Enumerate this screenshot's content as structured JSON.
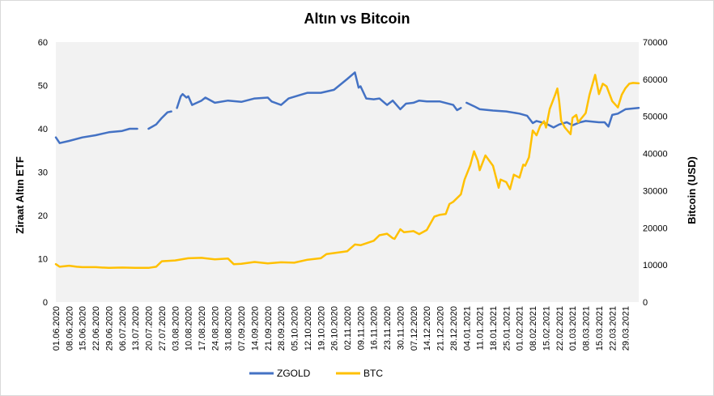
{
  "chart_data": {
    "type": "line",
    "title": "Altın vs Bitcoin",
    "ylabel_left": "Ziraat Altın ETF",
    "ylabel_right": "Bitcoin (USD)",
    "ylim_left": [
      0,
      60
    ],
    "ylim_right": [
      0,
      70000
    ],
    "yticks_left": [
      "0",
      "10",
      "20",
      "30",
      "40",
      "50",
      "60"
    ],
    "yticks_right": [
      "0",
      "10000",
      "20000",
      "30000",
      "40000",
      "50000",
      "60000",
      "70000"
    ],
    "grid": false,
    "plot_background": "#f2f2f2",
    "legend_position": "bottom",
    "x_range": [
      "01.06.2020",
      "05.04.2021"
    ],
    "x_ticks": [
      "01.06.2020",
      "08.06.2020",
      "15.06.2020",
      "22.06.2020",
      "29.06.2020",
      "06.07.2020",
      "13.07.2020",
      "20.07.2020",
      "27.07.2020",
      "03.08.2020",
      "10.08.2020",
      "17.08.2020",
      "24.08.2020",
      "31.08.2020",
      "07.09.2020",
      "14.09.2020",
      "21.09.2020",
      "28.09.2020",
      "05.10.2020",
      "12.10.2020",
      "19.10.2020",
      "26.10.2020",
      "02.11.2020",
      "09.11.2020",
      "16.11.2020",
      "23.11.2020",
      "30.11.2020",
      "07.12.2020",
      "14.12.2020",
      "21.12.2020",
      "28.12.2020",
      "04.01.2021",
      "11.01.2021",
      "18.01.2021",
      "25.01.2021",
      "01.02.2021",
      "08.02.2021",
      "15.02.2021",
      "22.02.2021",
      "01.03.2021",
      "08.03.2021",
      "15.03.2021",
      "22.03.2021",
      "29.03.2021"
    ],
    "series": [
      {
        "name": "ZGOLD",
        "axis": "left",
        "color": "#4472c4",
        "points": [
          [
            "01.06.2020",
            38
          ],
          [
            "03.06.2020",
            36.7
          ],
          [
            "08.06.2020",
            37.2
          ],
          [
            "15.06.2020",
            38
          ],
          [
            "22.06.2020",
            38.5
          ],
          [
            "29.06.2020",
            39.2
          ],
          [
            "06.07.2020",
            39.5
          ],
          [
            "10.07.2020",
            40
          ],
          [
            "14.07.2020",
            40
          ],
          [
            "17.07.2020",
            null
          ],
          [
            "20.07.2020",
            40
          ],
          [
            "24.07.2020",
            41
          ],
          [
            "27.07.2020",
            42.5
          ],
          [
            "30.07.2020",
            43.8
          ],
          [
            "01.08.2020",
            44
          ],
          [
            "02.08.2020",
            null
          ],
          [
            "04.08.2020",
            44.8
          ],
          [
            "06.08.2020",
            47.5
          ],
          [
            "07.08.2020",
            48
          ],
          [
            "09.08.2020",
            47.2
          ],
          [
            "10.08.2020",
            47.5
          ],
          [
            "12.08.2020",
            45.5
          ],
          [
            "17.08.2020",
            46.5
          ],
          [
            "19.08.2020",
            47.2
          ],
          [
            "24.08.2020",
            46
          ],
          [
            "31.08.2020",
            46.5
          ],
          [
            "07.09.2020",
            46.2
          ],
          [
            "14.09.2020",
            47
          ],
          [
            "21.09.2020",
            47.2
          ],
          [
            "23.09.2020",
            46.3
          ],
          [
            "28.09.2020",
            45.5
          ],
          [
            "02.10.2020",
            47
          ],
          [
            "08.10.2020",
            47.8
          ],
          [
            "12.10.2020",
            48.3
          ],
          [
            "19.10.2020",
            48.3
          ],
          [
            "26.10.2020",
            49
          ],
          [
            "02.11.2020",
            51.5
          ],
          [
            "06.11.2020",
            53
          ],
          [
            "08.11.2020",
            49.5
          ],
          [
            "09.11.2020",
            49.8
          ],
          [
            "12.11.2020",
            47
          ],
          [
            "16.11.2020",
            46.8
          ],
          [
            "19.11.2020",
            47
          ],
          [
            "23.11.2020",
            45.5
          ],
          [
            "26.11.2020",
            46.5
          ],
          [
            "30.11.2020",
            44.5
          ],
          [
            "03.12.2020",
            45.8
          ],
          [
            "07.12.2020",
            46
          ],
          [
            "10.12.2020",
            46.5
          ],
          [
            "14.12.2020",
            46.3
          ],
          [
            "21.12.2020",
            46.3
          ],
          [
            "28.12.2020",
            45.5
          ],
          [
            "30.12.2020",
            44.3
          ],
          [
            "01.01.2021",
            44.8
          ],
          [
            "02.01.2021",
            null
          ],
          [
            "04.01.2021",
            46
          ],
          [
            "08.01.2021",
            45.2
          ],
          [
            "11.01.2021",
            44.5
          ],
          [
            "18.01.2021",
            44.2
          ],
          [
            "25.01.2021",
            44
          ],
          [
            "01.02.2021",
            43.5
          ],
          [
            "05.02.2021",
            43
          ],
          [
            "08.02.2021",
            41.3
          ],
          [
            "10.02.2021",
            41.8
          ],
          [
            "15.02.2021",
            41.2
          ],
          [
            "19.02.2021",
            40.3
          ],
          [
            "22.02.2021",
            41
          ],
          [
            "26.02.2021",
            41.5
          ],
          [
            "01.03.2021",
            40.8
          ],
          [
            "05.03.2021",
            41.5
          ],
          [
            "08.03.2021",
            41.8
          ],
          [
            "15.03.2021",
            41.5
          ],
          [
            "18.03.2021",
            41.5
          ],
          [
            "20.03.2021",
            40.5
          ],
          [
            "22.03.2021",
            43.2
          ],
          [
            "25.03.2021",
            43.5
          ],
          [
            "29.03.2021",
            44.5
          ],
          [
            "05.04.2021",
            44.8
          ]
        ]
      },
      {
        "name": "BTC",
        "axis": "right",
        "color": "#ffc000",
        "points": [
          [
            "01.06.2020",
            10200
          ],
          [
            "03.06.2020",
            9500
          ],
          [
            "08.06.2020",
            9800
          ],
          [
            "12.06.2020",
            9500
          ],
          [
            "15.06.2020",
            9400
          ],
          [
            "22.06.2020",
            9400
          ],
          [
            "29.06.2020",
            9200
          ],
          [
            "06.07.2020",
            9300
          ],
          [
            "13.07.2020",
            9200
          ],
          [
            "20.07.2020",
            9200
          ],
          [
            "24.07.2020",
            9500
          ],
          [
            "27.07.2020",
            11000
          ],
          [
            "03.08.2020",
            11200
          ],
          [
            "10.08.2020",
            11800
          ],
          [
            "17.08.2020",
            11900
          ],
          [
            "24.08.2020",
            11500
          ],
          [
            "31.08.2020",
            11700
          ],
          [
            "03.09.2020",
            10200
          ],
          [
            "07.09.2020",
            10300
          ],
          [
            "14.09.2020",
            10800
          ],
          [
            "21.09.2020",
            10400
          ],
          [
            "28.09.2020",
            10700
          ],
          [
            "05.10.2020",
            10600
          ],
          [
            "12.10.2020",
            11400
          ],
          [
            "19.10.2020",
            11800
          ],
          [
            "22.10.2020",
            12900
          ],
          [
            "26.10.2020",
            13200
          ],
          [
            "02.11.2020",
            13700
          ],
          [
            "06.11.2020",
            15500
          ],
          [
            "09.11.2020",
            15300
          ],
          [
            "16.11.2020",
            16500
          ],
          [
            "19.11.2020",
            18000
          ],
          [
            "23.11.2020",
            18400
          ],
          [
            "26.11.2020",
            17200
          ],
          [
            "27.11.2020",
            17000
          ],
          [
            "30.11.2020",
            19600
          ],
          [
            "02.12.2020",
            18800
          ],
          [
            "07.12.2020",
            19100
          ],
          [
            "10.12.2020",
            18300
          ],
          [
            "14.12.2020",
            19400
          ],
          [
            "18.12.2020",
            23000
          ],
          [
            "21.12.2020",
            23500
          ],
          [
            "24.12.2020",
            23700
          ],
          [
            "26.12.2020",
            26400
          ],
          [
            "28.12.2020",
            27000
          ],
          [
            "01.01.2021",
            29000
          ],
          [
            "03.01.2021",
            33000
          ],
          [
            "06.01.2021",
            36800
          ],
          [
            "08.01.2021",
            40600
          ],
          [
            "10.01.2021",
            38000
          ],
          [
            "11.01.2021",
            35500
          ],
          [
            "14.01.2021",
            39500
          ],
          [
            "18.01.2021",
            36700
          ],
          [
            "21.01.2021",
            30800
          ],
          [
            "22.01.2021",
            33000
          ],
          [
            "25.01.2021",
            32300
          ],
          [
            "27.01.2021",
            30400
          ],
          [
            "29.01.2021",
            34300
          ],
          [
            "01.02.2021",
            33500
          ],
          [
            "03.02.2021",
            37000
          ],
          [
            "04.02.2021",
            36700
          ],
          [
            "06.02.2021",
            39000
          ],
          [
            "08.02.2021",
            46200
          ],
          [
            "10.02.2021",
            44900
          ],
          [
            "12.02.2021",
            47500
          ],
          [
            "14.02.2021",
            48700
          ],
          [
            "15.02.2021",
            47000
          ],
          [
            "17.02.2021",
            52000
          ],
          [
            "20.02.2021",
            56000
          ],
          [
            "21.02.2021",
            57500
          ],
          [
            "22.02.2021",
            54000
          ],
          [
            "23.02.2021",
            48800
          ],
          [
            "25.02.2021",
            47000
          ],
          [
            "28.02.2021",
            45200
          ],
          [
            "01.03.2021",
            49600
          ],
          [
            "03.03.2021",
            50400
          ],
          [
            "04.03.2021",
            48400
          ],
          [
            "08.03.2021",
            50900
          ],
          [
            "10.03.2021",
            55800
          ],
          [
            "13.03.2021",
            61200
          ],
          [
            "15.03.2021",
            56000
          ],
          [
            "17.03.2021",
            58800
          ],
          [
            "19.03.2021",
            58100
          ],
          [
            "22.03.2021",
            54100
          ],
          [
            "25.03.2021",
            52400
          ],
          [
            "27.03.2021",
            55800
          ],
          [
            "29.03.2021",
            57600
          ],
          [
            "31.03.2021",
            58800
          ],
          [
            "02.04.2021",
            59000
          ],
          [
            "05.04.2021",
            58900
          ]
        ]
      }
    ]
  }
}
